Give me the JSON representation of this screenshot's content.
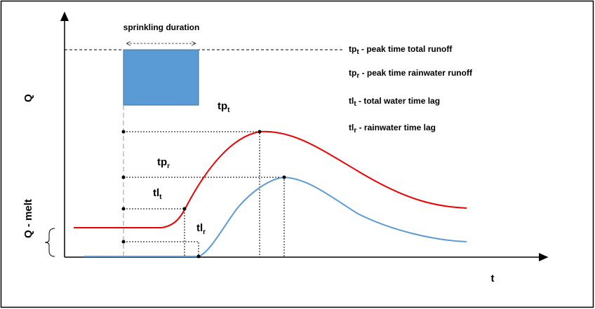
{
  "diagram": {
    "axes": {
      "y": "Q",
      "y_lower": "Q - melt",
      "x": "t"
    },
    "sprinkling": "sprinkling duration",
    "labels": [
      {
        "base": "tp",
        "sub": "t"
      },
      {
        "base": "tp",
        "sub": "r"
      },
      {
        "base": "tl",
        "sub": "t"
      },
      {
        "base": "tl",
        "sub": "r"
      }
    ],
    "legend": [
      {
        "base": "tp",
        "sub": "t",
        "text": " - peak time total runoff"
      },
      {
        "base": "tp",
        "sub": "r",
        "text": " - peak time rainwater runoff"
      },
      {
        "base": "tl",
        "sub": "t",
        "text": " - total water time lag"
      },
      {
        "base": "tl",
        "sub": "r",
        "text": " - rainwater time lag"
      }
    ]
  }
}
